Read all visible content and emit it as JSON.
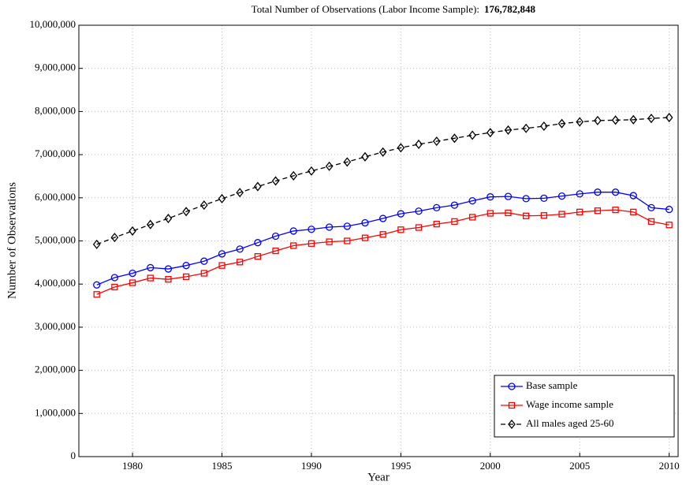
{
  "chart_data": {
    "type": "line",
    "title": "Total Number of Observations (Labor Income Sample):",
    "total": "176,782,848",
    "x_label": "Year",
    "y_label": "Number of Observations",
    "x": [
      1978,
      1979,
      1980,
      1981,
      1982,
      1983,
      1984,
      1985,
      1986,
      1987,
      1988,
      1989,
      1990,
      1991,
      1992,
      1993,
      1994,
      1995,
      1996,
      1997,
      1998,
      1999,
      2000,
      2001,
      2002,
      2003,
      2004,
      2005,
      2006,
      2007,
      2008,
      2009,
      2010
    ],
    "series": [
      {
        "name": "Base sample",
        "color": "#0000ff",
        "marker": "circle",
        "linestyle": "solid",
        "values": [
          3980000,
          4150000,
          4250000,
          4380000,
          4350000,
          4430000,
          4530000,
          4700000,
          4810000,
          4960000,
          5110000,
          5230000,
          5270000,
          5320000,
          5340000,
          5420000,
          5520000,
          5630000,
          5690000,
          5770000,
          5830000,
          5930000,
          6020000,
          6030000,
          5980000,
          5990000,
          6040000,
          6090000,
          6130000,
          6130000,
          6050000,
          5770000,
          5730000
        ]
      },
      {
        "name": "Wage income sample",
        "color": "#ff0000",
        "marker": "square",
        "linestyle": "solid",
        "values": [
          3760000,
          3930000,
          4030000,
          4140000,
          4110000,
          4170000,
          4250000,
          4430000,
          4510000,
          4640000,
          4770000,
          4890000,
          4940000,
          4980000,
          5000000,
          5070000,
          5150000,
          5260000,
          5310000,
          5390000,
          5450000,
          5550000,
          5640000,
          5650000,
          5580000,
          5590000,
          5620000,
          5670000,
          5700000,
          5720000,
          5670000,
          5450000,
          5370000
        ]
      },
      {
        "name": "All males aged 25-60",
        "color": "#000000",
        "marker": "diamond",
        "linestyle": "dashed",
        "values": [
          4920000,
          5080000,
          5230000,
          5380000,
          5520000,
          5680000,
          5830000,
          5980000,
          6120000,
          6260000,
          6390000,
          6510000,
          6620000,
          6730000,
          6830000,
          6950000,
          7060000,
          7160000,
          7240000,
          7310000,
          7380000,
          7450000,
          7510000,
          7570000,
          7610000,
          7660000,
          7720000,
          7760000,
          7790000,
          7800000,
          7810000,
          7840000,
          7860000
        ]
      }
    ],
    "xlim": [
      1977,
      2010.5
    ],
    "xticks": [
      1980,
      1985,
      1990,
      1995,
      2000,
      2005,
      2010
    ],
    "ylim": [
      0,
      10000000
    ],
    "yticks": [
      0,
      {
        "value": 1000000,
        "label": "1,000,000"
      },
      {
        "value": 2000000,
        "label": "2,000,000"
      },
      {
        "value": 3000000,
        "label": "3,000,000"
      },
      {
        "value": 4000000,
        "label": "4,000,000"
      },
      {
        "value": 5000000,
        "label": "5,000,000"
      },
      {
        "value": 6000000,
        "label": "6,000,000"
      },
      {
        "value": 7000000,
        "label": "7,000,000"
      },
      {
        "value": 8000000,
        "label": "8,000,000"
      },
      {
        "value": 9000000,
        "label": "9,000,000"
      },
      {
        "value": 10000000,
        "label": "10,000,000"
      }
    ],
    "grid": true,
    "legend": "lower right"
  }
}
